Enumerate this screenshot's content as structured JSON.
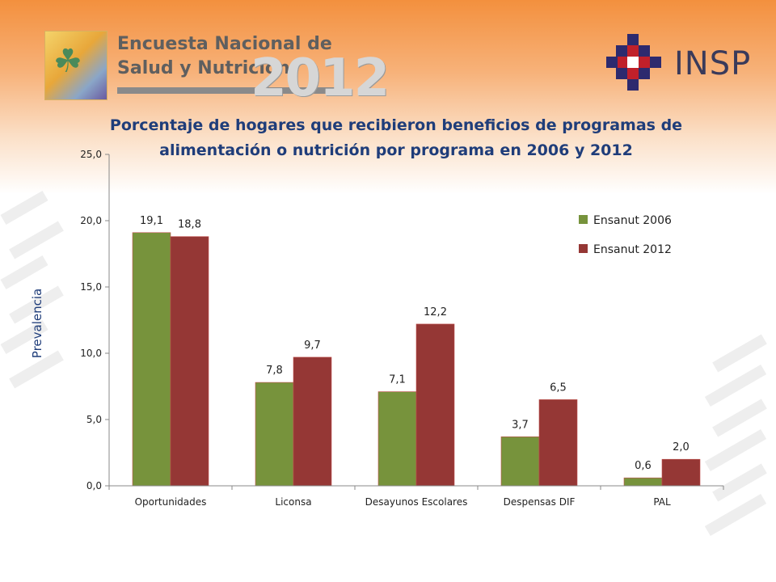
{
  "header": {
    "logo_left_line1": "Encuesta Nacional de",
    "logo_left_line2": "Salud y Nutrición",
    "logo_left_year": "2012",
    "logo_right_text": "INSP"
  },
  "colors": {
    "series_2006": "#77933c",
    "series_2012": "#953735",
    "title": "#1f3d7a"
  },
  "chart_data": {
    "type": "bar",
    "title": "Porcentaje de hogares que recibieron beneficios de programas de alimentación o nutrición por programa en 2006 y 2012",
    "title_line1": "Porcentaje de hogares que recibieron beneficios de programas de",
    "title_line2": "alimentación o nutrición por programa en 2006 y 2012",
    "xlabel": "",
    "ylabel": "Prevalencia",
    "ylim": [
      0,
      25
    ],
    "yticks": [
      "0,0",
      "5,0",
      "10,0",
      "15,0",
      "20,0",
      "25,0"
    ],
    "grid": false,
    "legend_position": "top-right",
    "categories": [
      "Oportunidades",
      "Liconsa",
      "Desayunos Escolares",
      "Despensas DIF",
      "PAL"
    ],
    "series": [
      {
        "name": "Ensanut 2006",
        "values": [
          19.1,
          7.8,
          7.1,
          3.7,
          0.6
        ],
        "labels": [
          "19,1",
          "7,8",
          "7,1",
          "3,7",
          "0,6"
        ]
      },
      {
        "name": "Ensanut 2012",
        "values": [
          18.8,
          9.7,
          12.2,
          6.5,
          2.0
        ],
        "labels": [
          "18,8",
          "9,7",
          "12,2",
          "6,5",
          "2,0"
        ]
      }
    ]
  }
}
